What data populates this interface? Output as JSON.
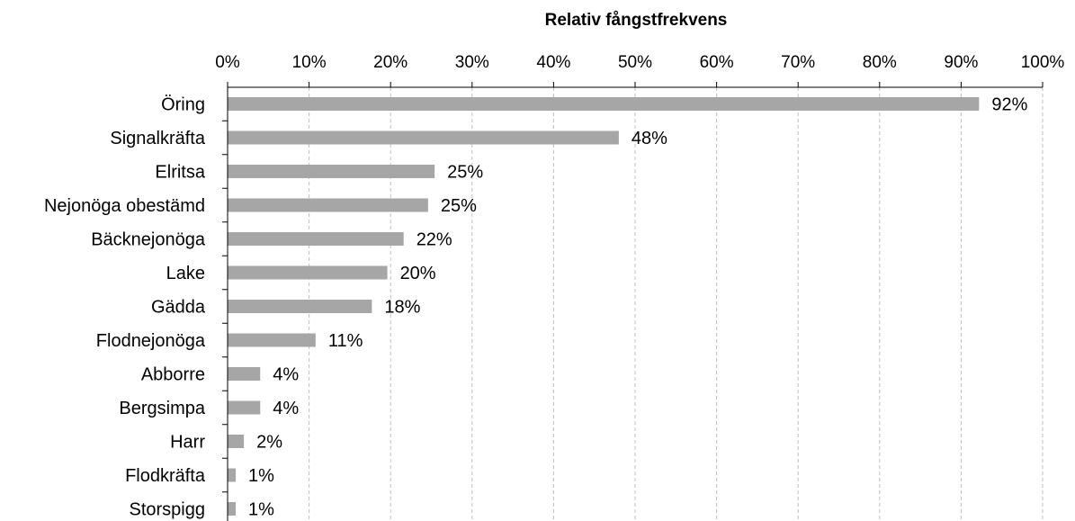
{
  "chart_data": {
    "type": "bar",
    "orientation": "horizontal",
    "title": "Relativ fångstfrekvens",
    "xlabel": "",
    "ylabel": "",
    "xlim": [
      0,
      100
    ],
    "x_tick_values": [
      0,
      10,
      20,
      30,
      40,
      50,
      60,
      70,
      80,
      90,
      100
    ],
    "x_tick_labels": [
      "0%",
      "10%",
      "20%",
      "30%",
      "40%",
      "50%",
      "60%",
      "70%",
      "80%",
      "90%",
      "100%"
    ],
    "x_axis_position": "top",
    "grid": "vertical dashed",
    "categories": [
      "Öring",
      "Signalkräfta",
      "Elritsa",
      "Nejonöga obestämd",
      "Bäcknejonöga",
      "Lake",
      "Gädda",
      "Flodnejonöga",
      "Abborre",
      "Bergsimpa",
      "Harr",
      "Flodkräfta",
      "Storspigg"
    ],
    "values": [
      92.2,
      48,
      25.4,
      24.6,
      21.6,
      19.6,
      17.7,
      10.8,
      4,
      4,
      2,
      1,
      1
    ],
    "data_labels": [
      "92%",
      "48%",
      "25%",
      "25%",
      "22%",
      "20%",
      "18%",
      "11%",
      "4%",
      "4%",
      "2%",
      "1%",
      "1%"
    ],
    "bar_color": "#a6a6a6",
    "legend": "none"
  }
}
